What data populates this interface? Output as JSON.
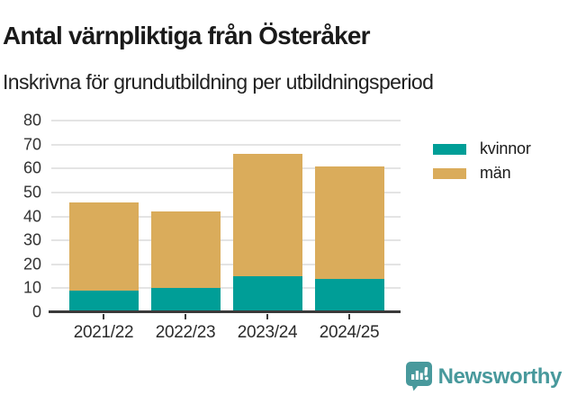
{
  "header": {
    "title": "Antal värnpliktiga från Österåker",
    "subtitle": "Inskrivna för grundutbildning per utbildningsperiod"
  },
  "chart_data": {
    "type": "bar",
    "stacked": true,
    "title": "Antal värnpliktiga från Österåker",
    "subtitle": "Inskrivna för grundutbildning per utbildningsperiod",
    "categories": [
      "2021/22",
      "2022/23",
      "2023/24",
      "2024/25"
    ],
    "series": [
      {
        "name": "kvinnor",
        "color": "#009E97",
        "values": [
          9,
          10,
          15,
          14
        ]
      },
      {
        "name": "män",
        "color": "#DAAC5B",
        "values": [
          37,
          32,
          51,
          47
        ]
      }
    ],
    "xlabel": "",
    "ylabel": "",
    "ylim": [
      0,
      80
    ],
    "ytick_step": 10,
    "grid": true,
    "legend_position": "right"
  },
  "footer": {
    "brand": "Newsworthy",
    "brand_color": "#48999C",
    "logo_icon": "newsworthy-chart-bubble-icon"
  },
  "colors": {
    "kvinnor": "#009E97",
    "man": "#DAAC5B",
    "gridline": "#e4e4e4",
    "axis": "#3a3a3a",
    "text_dark": "#1a1a1a"
  }
}
